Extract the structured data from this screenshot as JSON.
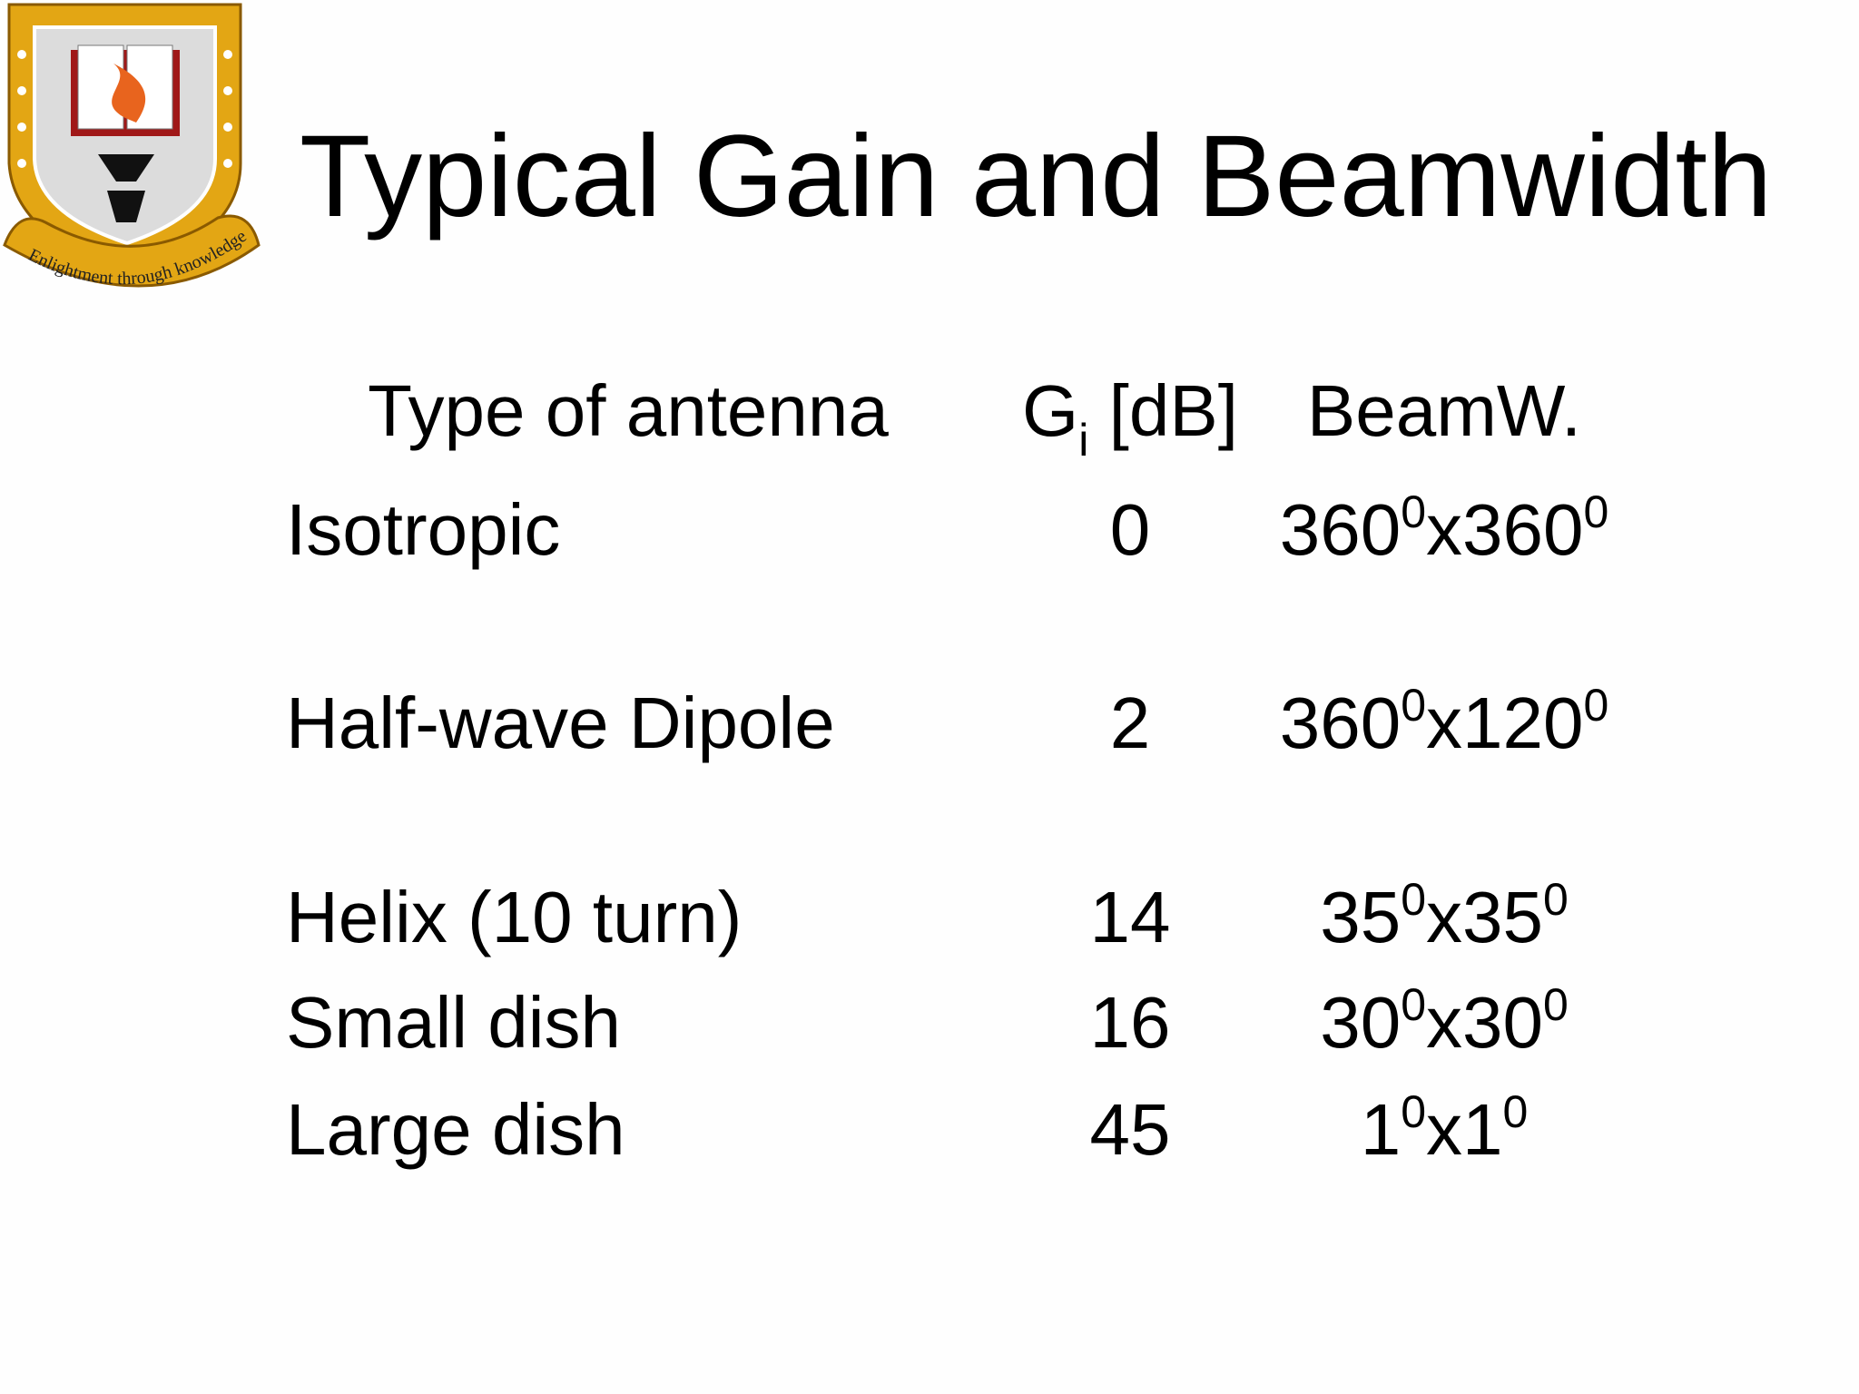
{
  "header": {
    "title": "Typical Gain and Beamwidth",
    "logo_motto": "Enlightment through knowledge"
  },
  "table": {
    "columns": {
      "type": "Type of antenna",
      "gain": {
        "symbol": "G",
        "subscript": "i",
        "unit": "[dB]"
      },
      "beamwidth": "BeamW."
    },
    "rows": [
      {
        "type": "Isotropic",
        "gain": "0",
        "beamwidth": [
          {
            "text": "360"
          },
          {
            "sup": "0"
          },
          {
            "text": "x360"
          },
          {
            "sup": "0"
          }
        ]
      },
      {
        "type": "Half-wave Dipole",
        "gain": "2",
        "beamwidth": [
          {
            "text": "360"
          },
          {
            "sup": "0"
          },
          {
            "text": "x120"
          },
          {
            "sup": "0"
          }
        ]
      },
      {
        "type": "Helix (10 turn)",
        "gain": "14",
        "beamwidth": [
          {
            "text": "35"
          },
          {
            "sup": "0"
          },
          {
            "text": "x35"
          },
          {
            "sup": "0"
          }
        ]
      },
      {
        "type": "Small dish",
        "gain": "16",
        "beamwidth": [
          {
            "text": "30"
          },
          {
            "sup": "0"
          },
          {
            "text": "x30"
          },
          {
            "sup": "0"
          }
        ]
      },
      {
        "type": "Large dish",
        "gain": "45",
        "beamwidth": [
          {
            "text": "1"
          },
          {
            "sup": "0"
          },
          {
            "text": "x1"
          },
          {
            "sup": "0"
          }
        ]
      }
    ]
  }
}
